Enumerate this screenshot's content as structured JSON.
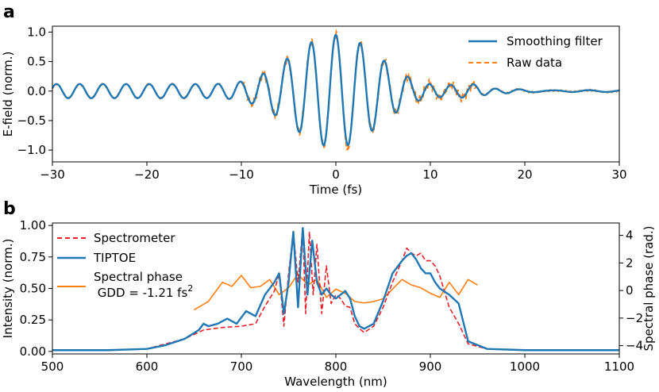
{
  "chart_data": [
    {
      "panel": "a",
      "type": "line",
      "xlabel": "Time (fs)",
      "ylabel": "E-field (norm.)",
      "xlim": [
        -30,
        30
      ],
      "ylim": [
        -1.2,
        1.1
      ],
      "xticks": [
        -30,
        -20,
        -10,
        0,
        10,
        20,
        30
      ],
      "xtick_labels": [
        "−30",
        "−20",
        "−10",
        "0",
        "10",
        "20",
        "30"
      ],
      "yticks": [
        -1.0,
        -0.5,
        0.0,
        0.5,
        1.0
      ],
      "ytick_labels": [
        "−1.0",
        "−0.5",
        "0.0",
        "0.5",
        "1.0"
      ],
      "legend_position": "top-right",
      "series": [
        {
          "name": "Smoothing filter",
          "color": "#1f77b4",
          "style": "solid",
          "model": {
            "carrier_period_fs": 2.6,
            "envelope_width_fs": 4.5,
            "baseline_amp": 0.12,
            "baseline_period_fs": 2.6,
            "tail_decay_after_fs": 15,
            "peak": 1.0,
            "min": -0.85
          }
        },
        {
          "name": "Raw data",
          "color": "#ff7f0e",
          "style": "dashed",
          "model": {
            "carrier_period_fs": 2.6,
            "envelope_width_fs": 4.5,
            "noise_amp": 0.08,
            "peak": 1.0,
            "min": -1.05
          }
        }
      ]
    },
    {
      "panel": "b",
      "type": "line",
      "xlabel": "Wavelength (nm)",
      "ylabel": "Intensity (norm.)",
      "ylabel_right": "Spectral phase (rad.)",
      "xlim": [
        500,
        1100
      ],
      "ylim": [
        -0.02,
        1.02
      ],
      "ylim_right": [
        -4.6,
        4.9
      ],
      "xticks": [
        500,
        600,
        700,
        800,
        900,
        1000,
        1100
      ],
      "xtick_labels": [
        "500",
        "600",
        "700",
        "800",
        "900",
        "1000",
        "1100"
      ],
      "yticks": [
        0.0,
        0.25,
        0.5,
        0.75,
        1.0
      ],
      "ytick_labels": [
        "0.00",
        "0.25",
        "0.50",
        "0.75",
        "1.00"
      ],
      "yticks_right": [
        -4,
        -2,
        0,
        2,
        4
      ],
      "ytick_labels_right": [
        "−4",
        "−2",
        "0",
        "2",
        "4"
      ],
      "legend_position": "top-left",
      "series": [
        {
          "name": "Spectrometer",
          "color": "#e8212a",
          "style": "dashed",
          "axis": "left",
          "x": [
            500,
            560,
            600,
            640,
            660,
            680,
            700,
            715,
            725,
            735,
            740,
            745,
            750,
            755,
            760,
            765,
            768,
            772,
            776,
            780,
            785,
            790,
            795,
            800,
            805,
            810,
            815,
            820,
            825,
            830,
            840,
            850,
            860,
            870,
            875,
            880,
            885,
            890,
            895,
            900,
            905,
            910,
            920,
            930,
            940,
            960,
            1000,
            1100
          ],
          "y": [
            0.01,
            0.01,
            0.02,
            0.1,
            0.17,
            0.19,
            0.2,
            0.22,
            0.36,
            0.48,
            0.62,
            0.2,
            0.62,
            0.95,
            0.55,
            0.98,
            0.3,
            0.95,
            0.45,
            0.85,
            0.3,
            0.68,
            0.38,
            0.45,
            0.42,
            0.36,
            0.35,
            0.22,
            0.18,
            0.15,
            0.2,
            0.35,
            0.55,
            0.72,
            0.82,
            0.78,
            0.76,
            0.78,
            0.72,
            0.72,
            0.68,
            0.6,
            0.35,
            0.22,
            0.06,
            0.02,
            0.01,
            0.01
          ]
        },
        {
          "name": "TIPTOE",
          "color": "#1f77b4",
          "style": "solid",
          "axis": "left",
          "x": [
            500,
            560,
            600,
            620,
            640,
            655,
            660,
            665,
            675,
            685,
            695,
            705,
            715,
            725,
            735,
            740,
            745,
            750,
            755,
            760,
            765,
            770,
            775,
            780,
            785,
            790,
            795,
            800,
            805,
            810,
            815,
            820,
            825,
            830,
            840,
            850,
            860,
            870,
            875,
            880,
            885,
            890,
            895,
            900,
            905,
            910,
            920,
            930,
            940,
            960,
            1000,
            1100
          ],
          "y": [
            0.01,
            0.01,
            0.02,
            0.05,
            0.1,
            0.17,
            0.22,
            0.2,
            0.22,
            0.26,
            0.22,
            0.32,
            0.28,
            0.45,
            0.55,
            0.62,
            0.3,
            0.55,
            0.95,
            0.35,
            0.98,
            0.45,
            0.88,
            0.55,
            0.45,
            0.5,
            0.45,
            0.42,
            0.45,
            0.48,
            0.42,
            0.28,
            0.2,
            0.18,
            0.22,
            0.4,
            0.62,
            0.72,
            0.76,
            0.78,
            0.73,
            0.66,
            0.62,
            0.62,
            0.55,
            0.5,
            0.45,
            0.38,
            0.08,
            0.02,
            0.01,
            0.01
          ]
        },
        {
          "name": "Spectral phase\n GDD = -1.21 fs²",
          "color": "#ff7f0e",
          "style": "solid",
          "axis": "right",
          "x": [
            650,
            665,
            680,
            690,
            700,
            710,
            720,
            730,
            740,
            750,
            760,
            770,
            780,
            790,
            800,
            810,
            820,
            830,
            840,
            850,
            860,
            870,
            880,
            890,
            900,
            910,
            920,
            930,
            940,
            950
          ],
          "y": [
            -1.4,
            -0.8,
            0.6,
            0.3,
            1.1,
            0.2,
            0.3,
            0.8,
            -0.3,
            0.2,
            1.2,
            0.4,
            0.8,
            -0.5,
            0.1,
            -0.2,
            -0.8,
            -0.9,
            -0.8,
            -0.6,
            0.1,
            0.8,
            0.4,
            0.2,
            -0.2,
            -0.5,
            0.6,
            -0.3,
            0.8,
            0.4
          ]
        }
      ]
    }
  ]
}
